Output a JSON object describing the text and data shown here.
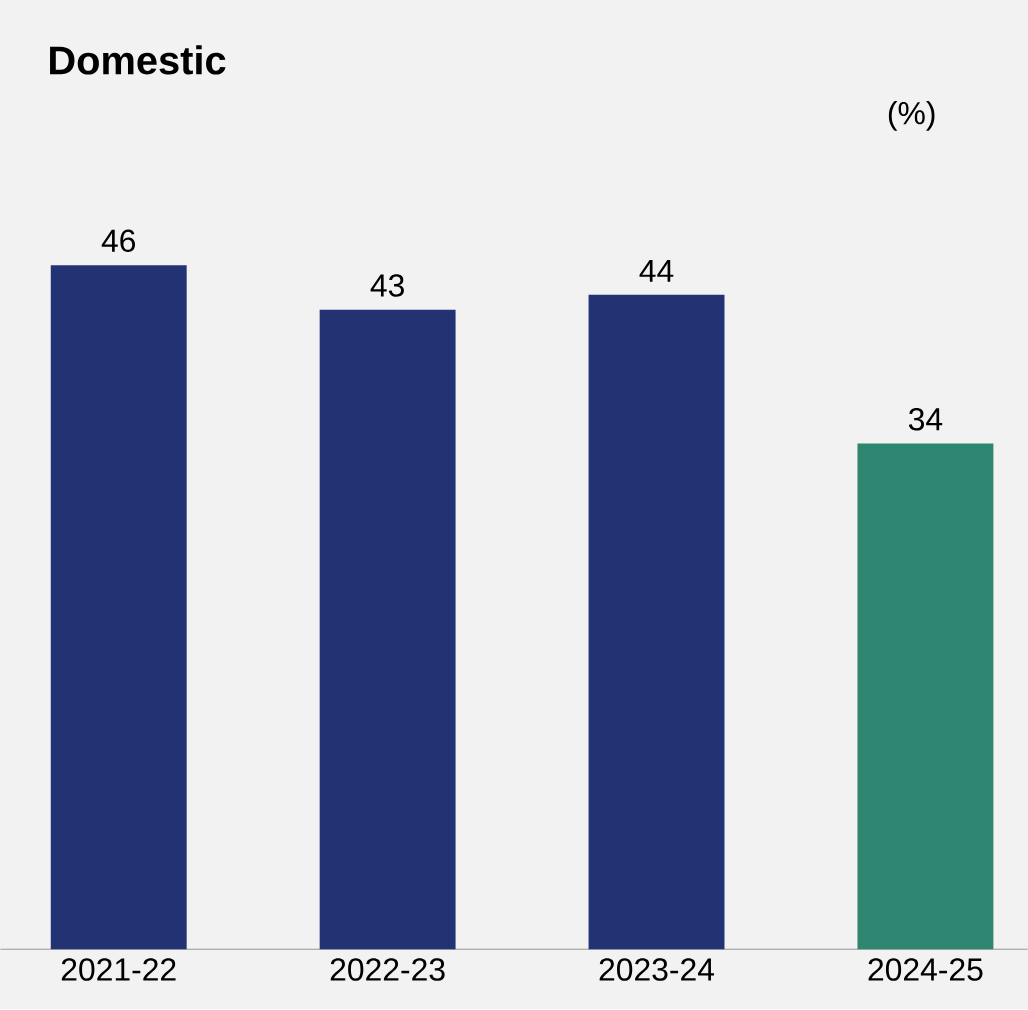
{
  "chart_data": {
    "type": "bar",
    "title": "Domestic",
    "ylabel": "(%)",
    "categories": [
      "2021-22",
      "2022-23",
      "2023-24",
      "2024-25"
    ],
    "values": [
      46,
      43,
      44,
      34
    ],
    "colors": [
      "#223273",
      "#223273",
      "#223273",
      "#2e8570"
    ],
    "data_labels": true
  }
}
